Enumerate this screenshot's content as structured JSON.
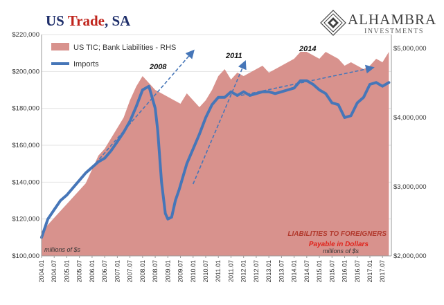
{
  "header": {
    "title_part1": "US ",
    "title_part2": "Trade",
    "title_part3": ", SA"
  },
  "brand": {
    "name": "ALHAMBRA",
    "sub": "INVESTMENTS"
  },
  "colors": {
    "area": "#d8928d",
    "line": "#4676b8",
    "annotation_red": "#b23a2e",
    "arrow": "#4676b8"
  },
  "chart_data": {
    "type": "line",
    "title": "US Trade, SA",
    "left_axis_note": "millions of $s",
    "right_axis_note_lines": [
      "LIABILITIES TO FOREIGNERS",
      "Payable in Dollars",
      "millions of $s"
    ],
    "left_yaxis": {
      "min": 100000,
      "max": 220000,
      "ticks": [
        100000,
        120000,
        140000,
        160000,
        180000,
        200000,
        220000
      ],
      "tick_labels": [
        "$100,000",
        "$120,000",
        "$140,000",
        "$160,000",
        "$180,000",
        "$200,000",
        "$220,000"
      ]
    },
    "right_yaxis": {
      "min": 2000000,
      "max": 5200000,
      "ticks": [
        2000000,
        3000000,
        4000000,
        5000000
      ],
      "tick_labels": [
        "$2,000,000",
        "$3,000,000",
        "$4,000,000",
        "$5,000,000"
      ]
    },
    "xaxis": {
      "start_year": 2004,
      "tick_labels": [
        "2004.01",
        "2004.07",
        "2005.01",
        "2005.07",
        "2006.01",
        "2006.07",
        "2007.01",
        "2007.07",
        "2008.01",
        "2008.07",
        "2009.01",
        "2009.07",
        "2010.01",
        "2010.07",
        "2011.01",
        "2011.07",
        "2012.01",
        "2012.07",
        "2013.01",
        "2013.07",
        "2014.01",
        "2014.07",
        "2015.01",
        "2015.07",
        "2016.01",
        "2016.07",
        "2017.01",
        "2017.07"
      ]
    },
    "legend": [
      {
        "name": "US TIC; Bank Liabilities - RHS",
        "kind": "area"
      },
      {
        "name": "Imports",
        "kind": "line"
      }
    ],
    "annotations": [
      "2008",
      "2011",
      "2014"
    ],
    "series": [
      {
        "name": "Imports",
        "axis": "left",
        "x": [
          2004.0,
          2004.25,
          2004.5,
          2004.75,
          2005.0,
          2005.25,
          2005.5,
          2005.75,
          2006.0,
          2006.25,
          2006.5,
          2006.75,
          2007.0,
          2007.25,
          2007.5,
          2007.75,
          2008.0,
          2008.25,
          2008.5,
          2008.6,
          2008.75,
          2008.9,
          2009.0,
          2009.15,
          2009.3,
          2009.45,
          2009.6,
          2009.75,
          2010.0,
          2010.25,
          2010.5,
          2010.75,
          2011.0,
          2011.25,
          2011.5,
          2011.75,
          2012.0,
          2012.25,
          2012.5,
          2012.75,
          2013.0,
          2013.25,
          2013.5,
          2013.75,
          2014.0,
          2014.25,
          2014.5,
          2014.75,
          2015.0,
          2015.25,
          2015.5,
          2015.75,
          2016.0,
          2016.25,
          2016.5,
          2016.75,
          2017.0,
          2017.25,
          2017.5,
          2017.75
        ],
        "values": [
          110000,
          120000,
          125000,
          130000,
          133000,
          137000,
          141000,
          145000,
          148000,
          151000,
          153000,
          157000,
          162000,
          167000,
          173000,
          181000,
          190000,
          192000,
          180000,
          168000,
          140000,
          123000,
          120000,
          121000,
          130000,
          136000,
          143000,
          150000,
          158000,
          166000,
          175000,
          182000,
          186000,
          186000,
          189000,
          187000,
          189000,
          187000,
          188000,
          189000,
          189000,
          188000,
          189000,
          190000,
          191000,
          195000,
          195000,
          193000,
          190000,
          188000,
          183000,
          182000,
          175000,
          176000,
          183000,
          186000,
          193000,
          194000,
          192000,
          194000
        ]
      },
      {
        "name": "US TIC; Bank Liabilities - RHS",
        "axis": "right",
        "x": [
          2004.0,
          2004.25,
          2004.5,
          2004.75,
          2005.0,
          2005.25,
          2005.5,
          2005.75,
          2006.0,
          2006.25,
          2006.5,
          2006.75,
          2007.0,
          2007.25,
          2007.5,
          2007.75,
          2008.0,
          2008.25,
          2008.5,
          2008.75,
          2009.0,
          2009.25,
          2009.5,
          2009.75,
          2010.0,
          2010.25,
          2010.5,
          2010.75,
          2011.0,
          2011.25,
          2011.5,
          2011.75,
          2012.0,
          2012.25,
          2012.5,
          2012.75,
          2013.0,
          2013.25,
          2013.5,
          2013.75,
          2014.0,
          2014.25,
          2014.5,
          2014.75,
          2015.0,
          2015.25,
          2015.5,
          2015.75,
          2016.0,
          2016.25,
          2016.5,
          2016.75,
          2017.0,
          2017.25,
          2017.5,
          2017.75
        ],
        "values": [
          2350000,
          2450000,
          2550000,
          2650000,
          2750000,
          2850000,
          2950000,
          3050000,
          3250000,
          3450000,
          3550000,
          3700000,
          3850000,
          4000000,
          4250000,
          4450000,
          4600000,
          4500000,
          4400000,
          4350000,
          4300000,
          4250000,
          4200000,
          4350000,
          4250000,
          4150000,
          4250000,
          4400000,
          4600000,
          4700000,
          4550000,
          4650000,
          4600000,
          4650000,
          4700000,
          4750000,
          4650000,
          4700000,
          4750000,
          4800000,
          4850000,
          4950000,
          4950000,
          4900000,
          4850000,
          4950000,
          4900000,
          4850000,
          4750000,
          4800000,
          4750000,
          4700000,
          4750000,
          4850000,
          4800000,
          4950000
        ]
      }
    ]
  }
}
